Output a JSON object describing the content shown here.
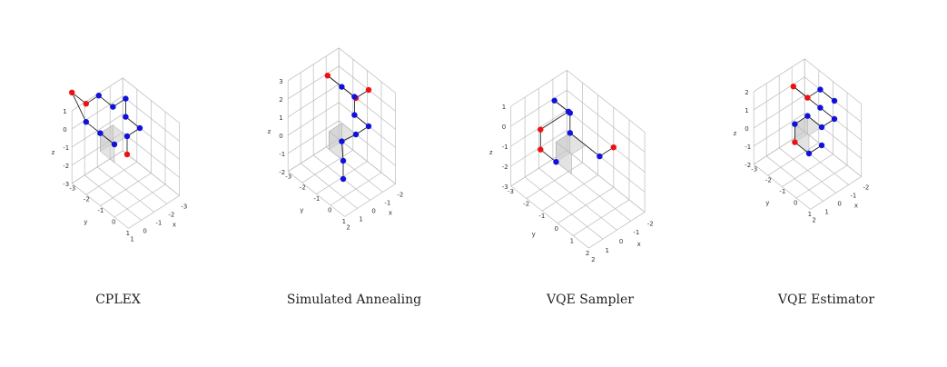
{
  "chart_data": [
    {
      "type": "scatter3d",
      "title": "CPLEX",
      "axes": {
        "x": {
          "label": "x",
          "ticks": [
            -3,
            -2,
            -1,
            0,
            1
          ]
        },
        "y": {
          "label": "y",
          "ticks": [
            -3,
            -2,
            -1,
            0,
            1
          ]
        },
        "z": {
          "label": "z",
          "ticks": [
            -3,
            -2,
            -1,
            0,
            1
          ]
        }
      },
      "points": [
        {
          "x": 0,
          "y": 0,
          "z": 0,
          "color": "red"
        },
        {
          "x": 0,
          "y": 0,
          "z": 1,
          "color": "blue"
        },
        {
          "x": 0,
          "y": -1,
          "z": 1,
          "color": "blue"
        },
        {
          "x": -1,
          "y": -1,
          "z": 1,
          "color": "blue"
        },
        {
          "x": -1,
          "y": -1,
          "z": 2,
          "color": "blue"
        },
        {
          "x": -1,
          "y": 0,
          "z": 2,
          "color": "blue"
        },
        {
          "x": -2,
          "y": 0,
          "z": 2,
          "color": "blue"
        },
        {
          "x": -2,
          "y": 1,
          "z": 2,
          "color": "red"
        },
        {
          "x": -3,
          "y": 1,
          "z": 2,
          "color": "red"
        },
        {
          "x": -2,
          "y": 1,
          "z": 1,
          "color": "blue"
        },
        {
          "x": -1,
          "y": 1,
          "z": 1,
          "color": "blue"
        },
        {
          "x": 0,
          "y": 1,
          "z": 1,
          "color": "blue"
        }
      ],
      "highlight_cube": [
        0,
        -1,
        0,
        1,
        0,
        1
      ]
    },
    {
      "type": "scatter3d",
      "title": "Simulated Annealing",
      "axes": {
        "x": {
          "label": "x",
          "ticks": [
            -3,
            -2,
            -1,
            0,
            1
          ]
        },
        "y": {
          "label": "y",
          "ticks": [
            -2,
            -1,
            0,
            1,
            2
          ]
        },
        "z": {
          "label": "z",
          "ticks": [
            -2,
            -1,
            0,
            1,
            2,
            3
          ]
        }
      },
      "points": [
        {
          "x": 0,
          "y": -1,
          "z": 3,
          "color": "red"
        },
        {
          "x": 0,
          "y": 0,
          "z": 3,
          "color": "red"
        },
        {
          "x": -1,
          "y": 0,
          "z": 3,
          "color": "blue"
        },
        {
          "x": -2,
          "y": 0,
          "z": 3,
          "color": "red"
        },
        {
          "x": -1,
          "y": -1,
          "z": 2,
          "color": "blue"
        },
        {
          "x": -1,
          "y": -1,
          "z": 1,
          "color": "blue"
        },
        {
          "x": 0,
          "y": -1,
          "z": 1,
          "color": "blue"
        },
        {
          "x": 0,
          "y": 0,
          "z": 1,
          "color": "blue"
        },
        {
          "x": -1,
          "y": 0,
          "z": 0,
          "color": "blue"
        },
        {
          "x": 0,
          "y": 1,
          "z": 0,
          "color": "blue"
        },
        {
          "x": 0,
          "y": 1,
          "z": -1,
          "color": "blue"
        }
      ],
      "highlight_cube": [
        0,
        -1,
        0,
        1,
        0,
        1
      ]
    },
    {
      "type": "scatter3d",
      "title": "VQE Sampler",
      "axes": {
        "x": {
          "label": "x",
          "ticks": [
            -3,
            -2,
            -1,
            0,
            1,
            2
          ]
        },
        "y": {
          "label": "y",
          "ticks": [
            -2,
            -1,
            0,
            1,
            2
          ]
        },
        "z": {
          "label": "z",
          "ticks": [
            -3,
            -2,
            -1,
            0,
            1
          ]
        }
      },
      "points": [
        {
          "x": 0,
          "y": -2,
          "z": -1,
          "color": "red"
        },
        {
          "x": 0,
          "y": -1,
          "z": -1,
          "color": "blue"
        },
        {
          "x": -1,
          "y": 0,
          "z": 0,
          "color": "blue"
        },
        {
          "x": -1,
          "y": 0,
          "z": 1,
          "color": "blue"
        },
        {
          "x": -2,
          "y": 0,
          "z": 1,
          "color": "blue"
        },
        {
          "x": -2,
          "y": -1,
          "z": 0,
          "color": "blue"
        },
        {
          "x": -2,
          "y": 1,
          "z": 0,
          "color": "red"
        },
        {
          "x": -2,
          "y": 1,
          "z": -1,
          "color": "red"
        },
        {
          "x": -1,
          "y": 1,
          "z": -1,
          "color": "blue"
        }
      ],
      "highlight_cube": [
        0,
        -1,
        0,
        1,
        -1,
        0
      ]
    },
    {
      "type": "scatter3d",
      "title": "VQE Estimator",
      "axes": {
        "x": {
          "label": "x",
          "ticks": [
            -3,
            -2,
            -1,
            0,
            1
          ]
        },
        "y": {
          "label": "y",
          "ticks": [
            -2,
            -1,
            0,
            1,
            2
          ]
        },
        "z": {
          "label": "z",
          "ticks": [
            -2,
            -1,
            0,
            1,
            2
          ]
        }
      },
      "points": [
        {
          "x": 0,
          "y": -1,
          "z": 2,
          "color": "blue"
        },
        {
          "x": -1,
          "y": -1,
          "z": 2,
          "color": "blue"
        },
        {
          "x": -1,
          "y": 0,
          "z": 2,
          "color": "red"
        },
        {
          "x": -2,
          "y": 0,
          "z": 2,
          "color": "red"
        },
        {
          "x": -1,
          "y": -1,
          "z": 1,
          "color": "blue"
        },
        {
          "x": 0,
          "y": -1,
          "z": 1,
          "color": "blue"
        },
        {
          "x": 0,
          "y": 0,
          "z": 1,
          "color": "blue"
        },
        {
          "x": -1,
          "y": 0,
          "z": 1,
          "color": "blue"
        },
        {
          "x": -1,
          "y": 1,
          "z": 1,
          "color": "blue"
        },
        {
          "x": -1,
          "y": 1,
          "z": 0,
          "color": "red"
        },
        {
          "x": 0,
          "y": 1,
          "z": 0,
          "color": "blue"
        },
        {
          "x": 0,
          "y": 0,
          "z": 0,
          "color": "blue"
        }
      ],
      "highlight_cube": [
        0,
        -1,
        0,
        1,
        0,
        1
      ]
    }
  ],
  "colors": {
    "red": "#ee1111",
    "blue": "#1111dd",
    "grid": "#bbbbbb",
    "cube": "#cccccc",
    "line": "#111111"
  }
}
